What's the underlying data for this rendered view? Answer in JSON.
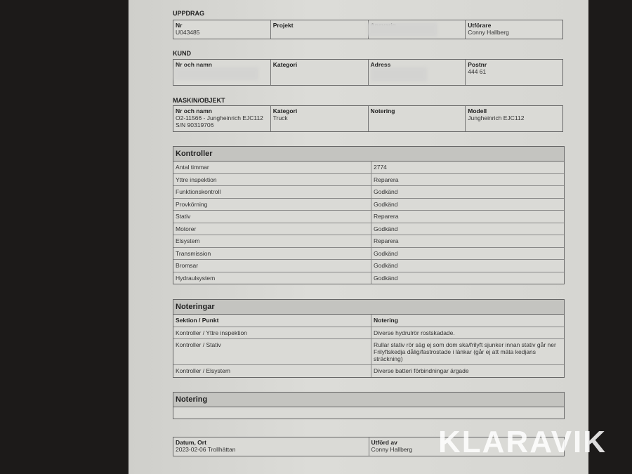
{
  "uppdrag": {
    "title": "UPPDRAG",
    "cells": [
      {
        "label": "Nr",
        "value": "U043485"
      },
      {
        "label": "Projekt",
        "value": ""
      },
      {
        "label": "Ansvarig",
        "value": ""
      },
      {
        "label": "Utförare",
        "value": "Conny Hallberg"
      }
    ]
  },
  "kund": {
    "title": "KUND",
    "cells": [
      {
        "label": "Nr och namn",
        "value": ""
      },
      {
        "label": "Kategori",
        "value": ""
      },
      {
        "label": "Adress",
        "value": ""
      },
      {
        "label": "Postnr",
        "value": "444 61"
      }
    ]
  },
  "maskin": {
    "title": "MASKIN/OBJEKT",
    "cells": [
      {
        "label": "Nr och namn",
        "value": "O2-11566 - Jungheinrich EJC112 S/N 90319706"
      },
      {
        "label": "Kategori",
        "value": "Truck"
      },
      {
        "label": "Notering",
        "value": ""
      },
      {
        "label": "Modell",
        "value": "Jungheinrich EJC112"
      }
    ]
  },
  "kontroller": {
    "title": "Kontroller",
    "rows": [
      [
        "Antal timmar",
        "2774"
      ],
      [
        "Yttre inspektion",
        "Reparera"
      ],
      [
        "Funktionskontroll",
        "Godkänd"
      ],
      [
        "Provkörning",
        "Godkänd"
      ],
      [
        "Stativ",
        "Reparera"
      ],
      [
        "Motorer",
        "Godkänd"
      ],
      [
        "Elsystem",
        "Reparera"
      ],
      [
        "Transmission",
        "Godkänd"
      ],
      [
        "Bromsar",
        "Godkänd"
      ],
      [
        "Hydraulsystem",
        "Godkänd"
      ]
    ]
  },
  "noteringar": {
    "title": "Noteringar",
    "header": [
      "Sektion / Punkt",
      "Notering"
    ],
    "rows": [
      [
        "Kontroller / Yttre inspektion",
        "Diverse hydrulrör rostskadade."
      ],
      [
        "Kontroller / Stativ",
        "Rullar stativ rör säg ej som dom ska/frilyft sjunker innan stativ går ner Frilyftskedja dålig/fastrostade i länkar (går ej att mäta kedjans sträckning)"
      ],
      [
        "Kontroller / Elsystem",
        "Diverse batteri förbindningar ärgade"
      ]
    ]
  },
  "notering": {
    "title": "Notering",
    "value": ""
  },
  "footer": {
    "cells": [
      {
        "label": "Datum, Ort",
        "value": "2023-02-06 Trollhättan"
      },
      {
        "label": "Utförd av",
        "value": "Conny Hallberg"
      }
    ]
  },
  "watermark": "KLARAVIK"
}
